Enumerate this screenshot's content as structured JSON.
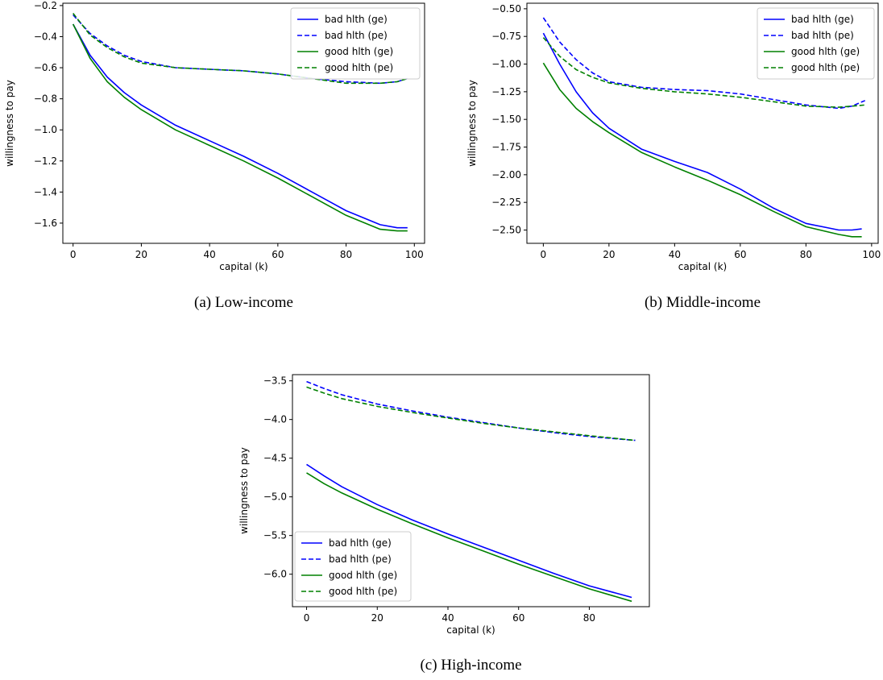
{
  "chart_data": [
    {
      "type": "line",
      "caption": "(a) Low-income",
      "xlabel": "capital (k)",
      "ylabel": "willingness to pay",
      "xlim": [
        -3,
        103
      ],
      "ylim": [
        -1.73,
        -0.185
      ],
      "xticks": [
        0,
        20,
        40,
        60,
        80,
        100
      ],
      "xtick_labels": [
        "0",
        "20",
        "40",
        "60",
        "80",
        "100"
      ],
      "yticks": [
        -0.2,
        -0.4,
        -0.6,
        -0.8,
        -1.0,
        -1.2,
        -1.4,
        -1.6
      ],
      "ytick_labels": [
        "−0.2",
        "−0.4",
        "−0.6",
        "−0.8",
        "−1.0",
        "−1.2",
        "−1.4",
        "−1.6"
      ],
      "legend_position": "top-right",
      "series": [
        {
          "name": "bad hlth (ge)",
          "color": "#0000ff",
          "dash": "solid",
          "x": [
            0,
            5,
            10,
            15,
            20,
            30,
            40,
            50,
            60,
            70,
            80,
            90,
            95,
            98
          ],
          "y": [
            -0.32,
            -0.52,
            -0.66,
            -0.76,
            -0.84,
            -0.97,
            -1.07,
            -1.17,
            -1.28,
            -1.4,
            -1.52,
            -1.61,
            -1.63,
            -1.63
          ]
        },
        {
          "name": "bad hlth (pe)",
          "color": "#0000ff",
          "dash": "dashed",
          "x": [
            0,
            5,
            10,
            15,
            20,
            30,
            40,
            50,
            60,
            70,
            80,
            90,
            95,
            98
          ],
          "y": [
            -0.26,
            -0.38,
            -0.46,
            -0.52,
            -0.56,
            -0.6,
            -0.61,
            -0.62,
            -0.64,
            -0.67,
            -0.69,
            -0.7,
            -0.69,
            -0.67
          ]
        },
        {
          "name": "good hlth (ge)",
          "color": "#008000",
          "dash": "solid",
          "x": [
            0,
            5,
            10,
            15,
            20,
            30,
            40,
            50,
            60,
            70,
            80,
            90,
            95,
            98
          ],
          "y": [
            -0.32,
            -0.54,
            -0.69,
            -0.79,
            -0.87,
            -1.0,
            -1.1,
            -1.2,
            -1.31,
            -1.43,
            -1.55,
            -1.64,
            -1.65,
            -1.65
          ]
        },
        {
          "name": "good hlth (pe)",
          "color": "#008000",
          "dash": "dashed",
          "x": [
            0,
            5,
            10,
            15,
            20,
            30,
            40,
            50,
            60,
            70,
            80,
            90,
            95,
            98
          ],
          "y": [
            -0.25,
            -0.39,
            -0.47,
            -0.53,
            -0.57,
            -0.6,
            -0.61,
            -0.62,
            -0.64,
            -0.67,
            -0.7,
            -0.7,
            -0.69,
            -0.67
          ]
        }
      ]
    },
    {
      "type": "line",
      "caption": "(b) Middle-income",
      "xlabel": "capital (k)",
      "ylabel": "willingness to pay",
      "xlim": [
        -5,
        102
      ],
      "ylim": [
        -2.62,
        -0.45
      ],
      "xticks": [
        0,
        20,
        40,
        60,
        80,
        100
      ],
      "xtick_labels": [
        "0",
        "20",
        "40",
        "60",
        "80",
        "100"
      ],
      "yticks": [
        -0.5,
        -0.75,
        -1.0,
        -1.25,
        -1.5,
        -1.75,
        -2.0,
        -2.25,
        -2.5
      ],
      "ytick_labels": [
        "−0.50",
        "−0.75",
        "−1.00",
        "−1.25",
        "−1.50",
        "−1.75",
        "−2.00",
        "−2.25",
        "−2.50"
      ],
      "legend_position": "top-right",
      "series": [
        {
          "name": "bad hlth (ge)",
          "color": "#0000ff",
          "dash": "solid",
          "x": [
            0,
            5,
            10,
            15,
            20,
            30,
            40,
            50,
            60,
            70,
            80,
            90,
            94,
            97
          ],
          "y": [
            -0.72,
            -1.0,
            -1.25,
            -1.44,
            -1.58,
            -1.77,
            -1.88,
            -1.98,
            -2.13,
            -2.3,
            -2.44,
            -2.5,
            -2.5,
            -2.49
          ]
        },
        {
          "name": "bad hlth (pe)",
          "color": "#0000ff",
          "dash": "dashed",
          "x": [
            0,
            5,
            10,
            15,
            20,
            30,
            40,
            50,
            60,
            70,
            80,
            90,
            94,
            98
          ],
          "y": [
            -0.58,
            -0.8,
            -0.96,
            -1.08,
            -1.16,
            -1.21,
            -1.23,
            -1.24,
            -1.27,
            -1.32,
            -1.37,
            -1.4,
            -1.38,
            -1.33
          ]
        },
        {
          "name": "good hlth (ge)",
          "color": "#008000",
          "dash": "solid",
          "x": [
            0,
            5,
            10,
            15,
            20,
            30,
            40,
            50,
            60,
            70,
            80,
            90,
            94,
            97
          ],
          "y": [
            -0.99,
            -1.23,
            -1.4,
            -1.52,
            -1.62,
            -1.8,
            -1.93,
            -2.05,
            -2.18,
            -2.33,
            -2.47,
            -2.54,
            -2.56,
            -2.56
          ]
        },
        {
          "name": "good hlth (pe)",
          "color": "#008000",
          "dash": "dashed",
          "x": [
            0,
            5,
            10,
            15,
            20,
            30,
            40,
            50,
            60,
            70,
            80,
            90,
            94,
            98
          ],
          "y": [
            -0.76,
            -0.93,
            -1.05,
            -1.12,
            -1.17,
            -1.22,
            -1.25,
            -1.27,
            -1.3,
            -1.34,
            -1.38,
            -1.39,
            -1.38,
            -1.37
          ]
        }
      ]
    },
    {
      "type": "line",
      "caption": "(c) High-income",
      "xlabel": "capital (k)",
      "ylabel": "willingness to pay",
      "xlim": [
        -4,
        97
      ],
      "ylim": [
        -6.42,
        -3.42
      ],
      "xticks": [
        0,
        20,
        40,
        60,
        80
      ],
      "xtick_labels": [
        "0",
        "20",
        "40",
        "60",
        "80"
      ],
      "yticks": [
        -3.5,
        -4.0,
        -4.5,
        -5.0,
        -5.5,
        -6.0
      ],
      "ytick_labels": [
        "−3.5",
        "−4.0",
        "−4.5",
        "−5.0",
        "−5.5",
        "−6.0"
      ],
      "legend_position": "bottom-left",
      "series": [
        {
          "name": "bad hlth (ge)",
          "color": "#0000ff",
          "dash": "solid",
          "x": [
            0,
            5,
            10,
            20,
            30,
            40,
            50,
            60,
            70,
            80,
            92
          ],
          "y": [
            -4.58,
            -4.73,
            -4.87,
            -5.1,
            -5.3,
            -5.48,
            -5.65,
            -5.82,
            -5.99,
            -6.15,
            -6.3
          ]
        },
        {
          "name": "bad hlth (pe)",
          "color": "#0000ff",
          "dash": "dashed",
          "x": [
            0,
            5,
            10,
            20,
            30,
            40,
            50,
            60,
            70,
            80,
            93
          ],
          "y": [
            -3.51,
            -3.6,
            -3.68,
            -3.8,
            -3.89,
            -3.97,
            -4.04,
            -4.11,
            -4.17,
            -4.22,
            -4.27
          ]
        },
        {
          "name": "good hlth (ge)",
          "color": "#008000",
          "dash": "solid",
          "x": [
            0,
            5,
            10,
            20,
            30,
            40,
            50,
            60,
            70,
            80,
            92
          ],
          "y": [
            -4.69,
            -4.83,
            -4.95,
            -5.16,
            -5.35,
            -5.53,
            -5.7,
            -5.87,
            -6.03,
            -6.19,
            -6.35
          ]
        },
        {
          "name": "good hlth (pe)",
          "color": "#008000",
          "dash": "dashed",
          "x": [
            0,
            5,
            10,
            20,
            30,
            40,
            50,
            60,
            70,
            80,
            93
          ],
          "y": [
            -3.58,
            -3.66,
            -3.73,
            -3.83,
            -3.91,
            -3.98,
            -4.05,
            -4.11,
            -4.16,
            -4.21,
            -4.27
          ]
        }
      ]
    }
  ]
}
